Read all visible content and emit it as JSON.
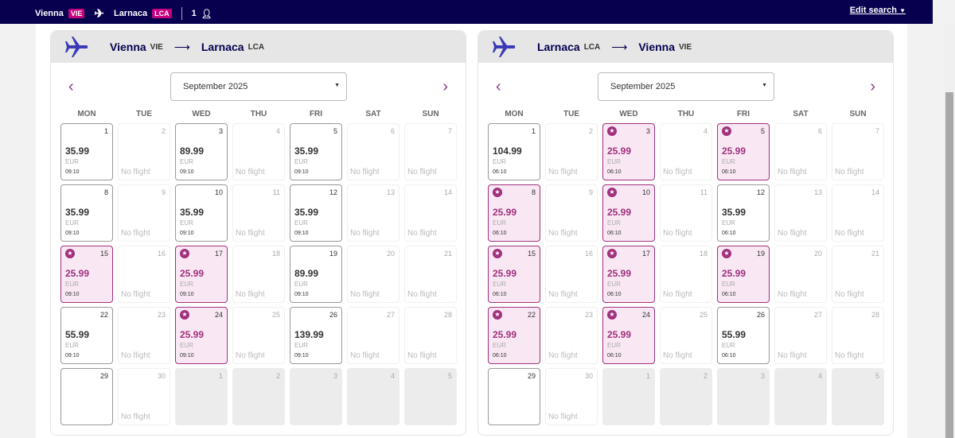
{
  "topbar": {
    "origin": "Vienna",
    "origin_code": "VIE",
    "destination": "Larnaca",
    "destination_code": "LCA",
    "passengers": "1",
    "edit_search": "Edit search"
  },
  "colors": {
    "navy": "#06004f",
    "deal": "#a0307e",
    "badge": "#c6007e"
  },
  "weekdays": [
    "MON",
    "TUE",
    "WED",
    "THU",
    "FRI",
    "SAT",
    "SUN"
  ],
  "panels": [
    {
      "from": "Vienna",
      "from_code": "VIE",
      "to": "Larnaca",
      "to_code": "LCA",
      "month": "September 2025",
      "cells": [
        {
          "day": "1",
          "price": "35.99",
          "time": "09:10"
        },
        {
          "day": "2"
        },
        {
          "day": "3",
          "price": "89.99",
          "time": "09:10"
        },
        {
          "day": "4"
        },
        {
          "day": "5",
          "price": "35.99",
          "time": "09:10"
        },
        {
          "day": "6"
        },
        {
          "day": "7"
        },
        {
          "day": "8",
          "price": "35.99",
          "time": "09:10"
        },
        {
          "day": "9"
        },
        {
          "day": "10",
          "price": "35.99",
          "time": "09:10"
        },
        {
          "day": "11"
        },
        {
          "day": "12",
          "price": "35.99",
          "time": "09:10"
        },
        {
          "day": "13"
        },
        {
          "day": "14"
        },
        {
          "day": "15",
          "price": "25.99",
          "time": "09:10",
          "deal": true
        },
        {
          "day": "16"
        },
        {
          "day": "17",
          "price": "25.99",
          "time": "09:10",
          "deal": true
        },
        {
          "day": "18"
        },
        {
          "day": "19",
          "price": "89.99",
          "time": "09:10"
        },
        {
          "day": "20"
        },
        {
          "day": "21"
        },
        {
          "day": "22",
          "price": "55.99",
          "time": "09:10"
        },
        {
          "day": "23"
        },
        {
          "day": "24",
          "price": "25.99",
          "time": "09:10",
          "deal": true
        },
        {
          "day": "25"
        },
        {
          "day": "26",
          "price": "139.99",
          "time": "09:10"
        },
        {
          "day": "27"
        },
        {
          "day": "28"
        },
        {
          "day": "29",
          "bordered": true
        },
        {
          "day": "30"
        },
        {
          "day": "1",
          "muted": true
        },
        {
          "day": "2",
          "muted": true
        },
        {
          "day": "3",
          "muted": true
        },
        {
          "day": "4",
          "muted": true
        },
        {
          "day": "5",
          "muted": true
        }
      ]
    },
    {
      "from": "Larnaca",
      "from_code": "LCA",
      "to": "Vienna",
      "to_code": "VIE",
      "month": "September 2025",
      "cells": [
        {
          "day": "1",
          "price": "104.99",
          "time": "06:10"
        },
        {
          "day": "2"
        },
        {
          "day": "3",
          "price": "25.99",
          "time": "06:10",
          "deal": true
        },
        {
          "day": "4"
        },
        {
          "day": "5",
          "price": "25.99",
          "time": "06:10",
          "deal": true
        },
        {
          "day": "6"
        },
        {
          "day": "7"
        },
        {
          "day": "8",
          "price": "25.99",
          "time": "06:10",
          "deal": true
        },
        {
          "day": "9"
        },
        {
          "day": "10",
          "price": "25.99",
          "time": "06:10",
          "deal": true
        },
        {
          "day": "11"
        },
        {
          "day": "12",
          "price": "35.99",
          "time": "06:10"
        },
        {
          "day": "13"
        },
        {
          "day": "14"
        },
        {
          "day": "15",
          "price": "25.99",
          "time": "06:10",
          "deal": true
        },
        {
          "day": "16"
        },
        {
          "day": "17",
          "price": "25.99",
          "time": "06:10",
          "deal": true
        },
        {
          "day": "18"
        },
        {
          "day": "19",
          "price": "25.99",
          "time": "06:10",
          "deal": true
        },
        {
          "day": "20"
        },
        {
          "day": "21"
        },
        {
          "day": "22",
          "price": "25.99",
          "time": "06:10",
          "deal": true
        },
        {
          "day": "23"
        },
        {
          "day": "24",
          "price": "25.99",
          "time": "06:10",
          "deal": true
        },
        {
          "day": "25"
        },
        {
          "day": "26",
          "price": "55.99",
          "time": "06:10"
        },
        {
          "day": "27"
        },
        {
          "day": "28"
        },
        {
          "day": "29",
          "bordered": true
        },
        {
          "day": "30"
        },
        {
          "day": "1",
          "muted": true
        },
        {
          "day": "2",
          "muted": true
        },
        {
          "day": "3",
          "muted": true
        },
        {
          "day": "4",
          "muted": true
        },
        {
          "day": "5",
          "muted": true
        }
      ]
    }
  ],
  "labels": {
    "currency": "EUR",
    "no_flight": "No flight"
  }
}
